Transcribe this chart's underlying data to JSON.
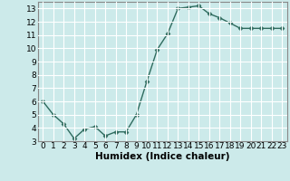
{
  "x": [
    0,
    1,
    2,
    3,
    4,
    5,
    6,
    7,
    8,
    9,
    10,
    11,
    12,
    13,
    14,
    15,
    16,
    17,
    18,
    19,
    20,
    21,
    22,
    23
  ],
  "y": [
    6.0,
    5.0,
    4.3,
    3.2,
    3.9,
    4.1,
    3.4,
    3.7,
    3.7,
    5.0,
    7.5,
    9.9,
    11.1,
    13.0,
    13.1,
    13.2,
    12.6,
    12.3,
    11.9,
    11.5,
    11.5,
    11.5,
    11.5,
    11.5
  ],
  "line_color": "#2e6b5e",
  "marker": "D",
  "markersize": 2.5,
  "linewidth": 1.0,
  "xlabel": "Humidex (Indice chaleur)",
  "xlim": [
    -0.5,
    23.5
  ],
  "ylim": [
    3,
    13.5
  ],
  "yticks": [
    3,
    4,
    5,
    6,
    7,
    8,
    9,
    10,
    11,
    12,
    13
  ],
  "xticks": [
    0,
    1,
    2,
    3,
    4,
    5,
    6,
    7,
    8,
    9,
    10,
    11,
    12,
    13,
    14,
    15,
    16,
    17,
    18,
    19,
    20,
    21,
    22,
    23
  ],
  "bg_color": "#cceaea",
  "grid_color": "#ffffff",
  "tick_label_fontsize": 6.5,
  "xlabel_fontsize": 7.5,
  "spine_color": "#888888"
}
